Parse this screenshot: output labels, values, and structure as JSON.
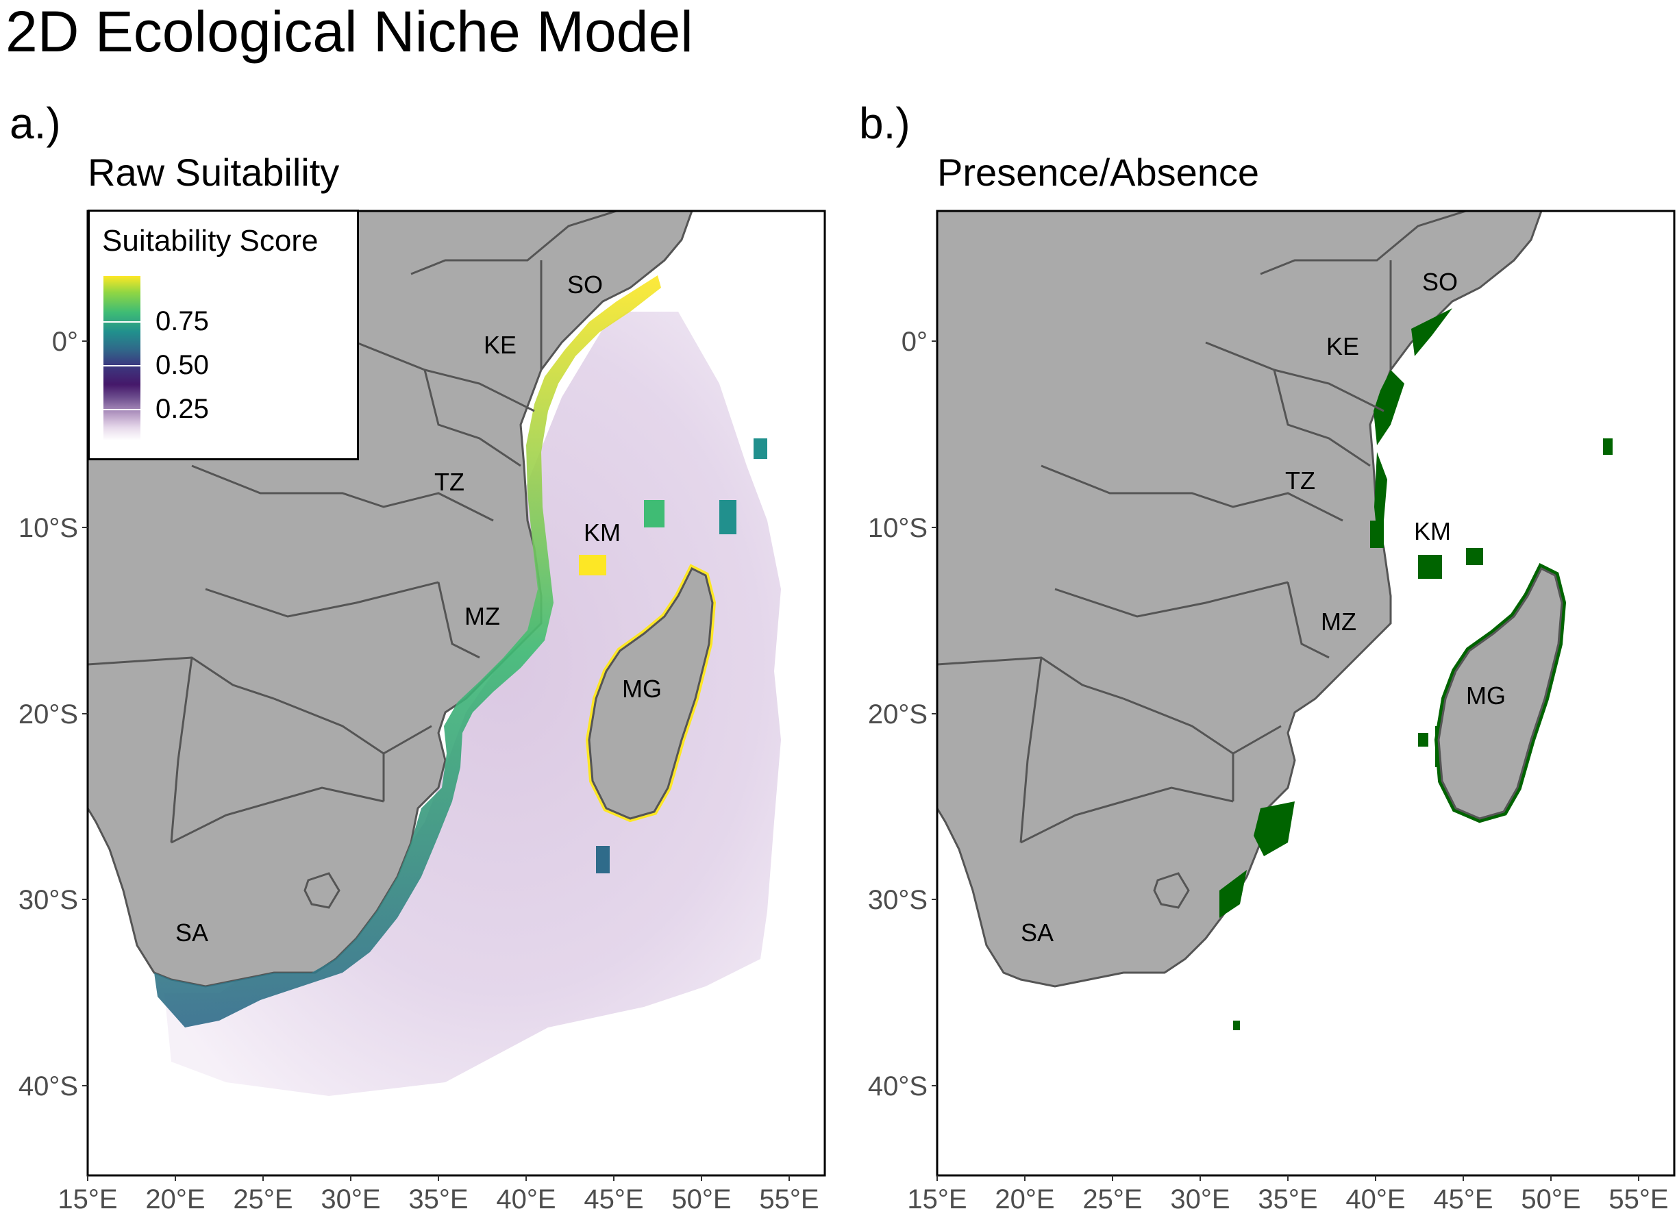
{
  "title": "2D Ecological Niche Model",
  "panels": [
    {
      "tag": "a.)",
      "title": "Raw Suitability"
    },
    {
      "tag": "b.)",
      "title": "Presence/Absence"
    }
  ],
  "legend": {
    "title": "Suitability Score",
    "labels": [
      "0.75",
      "0.50",
      "0.25"
    ],
    "colors": [
      "#ffffff",
      "#b79cc5",
      "#45186a",
      "#2f6b8a",
      "#21908d",
      "#3fbc74",
      "#fde725"
    ]
  },
  "axes": {
    "x_ticks": [
      "15°E",
      "20°E",
      "25°E",
      "30°E",
      "35°E",
      "40°E",
      "45°E",
      "50°E",
      "55°E"
    ],
    "y_ticks": [
      "0°",
      "10°S",
      "20°S",
      "30°S",
      "40°S"
    ]
  },
  "country_labels": [
    "SO",
    "KE",
    "TZ",
    "KM",
    "MZ",
    "MG",
    "SA"
  ],
  "colors": {
    "land": "#aaaaaa",
    "border": "#555555",
    "presence": "#006400",
    "suitability_low": "#e6d8ea",
    "suitability_mid": "#21908d",
    "suitability_high": "#fde725"
  }
}
